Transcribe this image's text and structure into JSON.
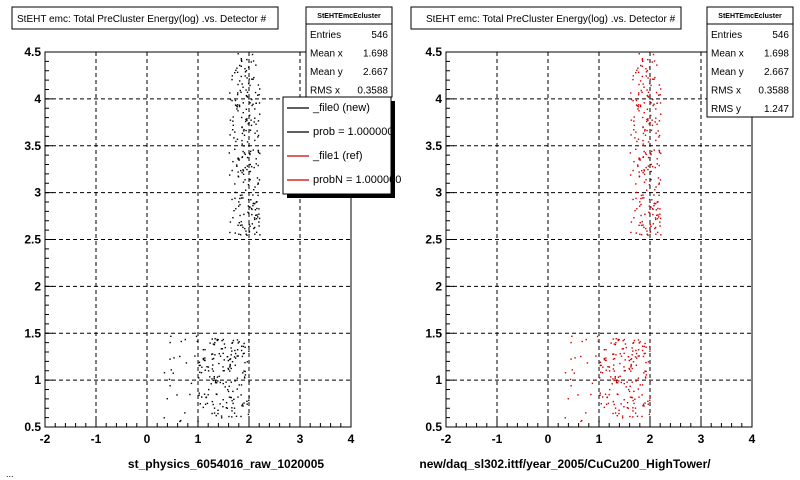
{
  "chart_data": [
    {
      "type": "scatter",
      "title": "StEHT emc: Total PreCluster Energy(log) .vs. Detector #",
      "xlabel": "st_physics_6054016_raw_1020005",
      "ylabel": "",
      "xlim": [
        -2,
        4
      ],
      "ylim": [
        0.5,
        4.5
      ],
      "xticks": [
        "-2",
        "-1",
        "0",
        "1",
        "2",
        "3",
        "4"
      ],
      "yticks": [
        "0.5",
        "1",
        "1.5",
        "2",
        "2.5",
        "3",
        "3.5",
        "4",
        "4.5"
      ],
      "grid": true,
      "color": "#000000",
      "clusters": [
        {
          "x_range": [
            1.6,
            2.2
          ],
          "y_range": [
            2.55,
            4.5
          ],
          "count": 240
        },
        {
          "x_range": [
            1.0,
            2.0
          ],
          "y_range": [
            0.6,
            1.45
          ],
          "count": 180
        },
        {
          "x_range": [
            0.3,
            1.0
          ],
          "y_range": [
            0.55,
            1.5
          ],
          "count": 25
        }
      ],
      "stats": {
        "name": "StEHTEmcEcluster",
        "rows": [
          {
            "label": "Entries",
            "value": "546"
          },
          {
            "label": "Mean x",
            "value": "1.698"
          },
          {
            "label": "Mean y",
            "value": "2.667"
          },
          {
            "label": "RMS x",
            "value": "0.3588"
          }
        ]
      },
      "legend": {
        "placement": "top-right",
        "entries": [
          {
            "label": "_file0 (new)",
            "color": "#000000"
          },
          {
            "label": "prob = 1.000000",
            "color": "#000000"
          },
          {
            "label": "_file1 (ref)",
            "color": "#cc0000"
          },
          {
            "label": "probN = 1.000000",
            "color": "#cc0000"
          }
        ]
      }
    },
    {
      "type": "scatter",
      "title": "StEHT emc: Total PreCluster Energy(log) .vs. Detector #",
      "xlabel": "new/daq_sl302.ittf/year_2005/CuCu200_HighTower/",
      "ylabel": "",
      "xlim": [
        -2,
        4
      ],
      "ylim": [
        0.5,
        4.5
      ],
      "xticks": [
        "-2",
        "-1",
        "0",
        "1",
        "2",
        "3",
        "4"
      ],
      "yticks": [
        "0.5",
        "1",
        "1.5",
        "2",
        "2.5",
        "3",
        "3.5",
        "4",
        "4.5"
      ],
      "grid": true,
      "color": "#cc0000",
      "clusters": [
        {
          "x_range": [
            1.6,
            2.2
          ],
          "y_range": [
            2.55,
            4.5
          ],
          "count": 240
        },
        {
          "x_range": [
            1.0,
            2.0
          ],
          "y_range": [
            0.6,
            1.45
          ],
          "count": 180
        },
        {
          "x_range": [
            0.3,
            1.0
          ],
          "y_range": [
            0.55,
            1.5
          ],
          "count": 25
        }
      ],
      "stats": {
        "name": "StEHTEmcEcluster",
        "rows": [
          {
            "label": "Entries",
            "value": "546"
          },
          {
            "label": "Mean x",
            "value": "1.698"
          },
          {
            "label": "Mean y",
            "value": "2.667"
          },
          {
            "label": "RMS x",
            "value": "0.3588"
          },
          {
            "label": "RMS y",
            "value": "1.247"
          }
        ]
      }
    }
  ],
  "footer_text": "..."
}
